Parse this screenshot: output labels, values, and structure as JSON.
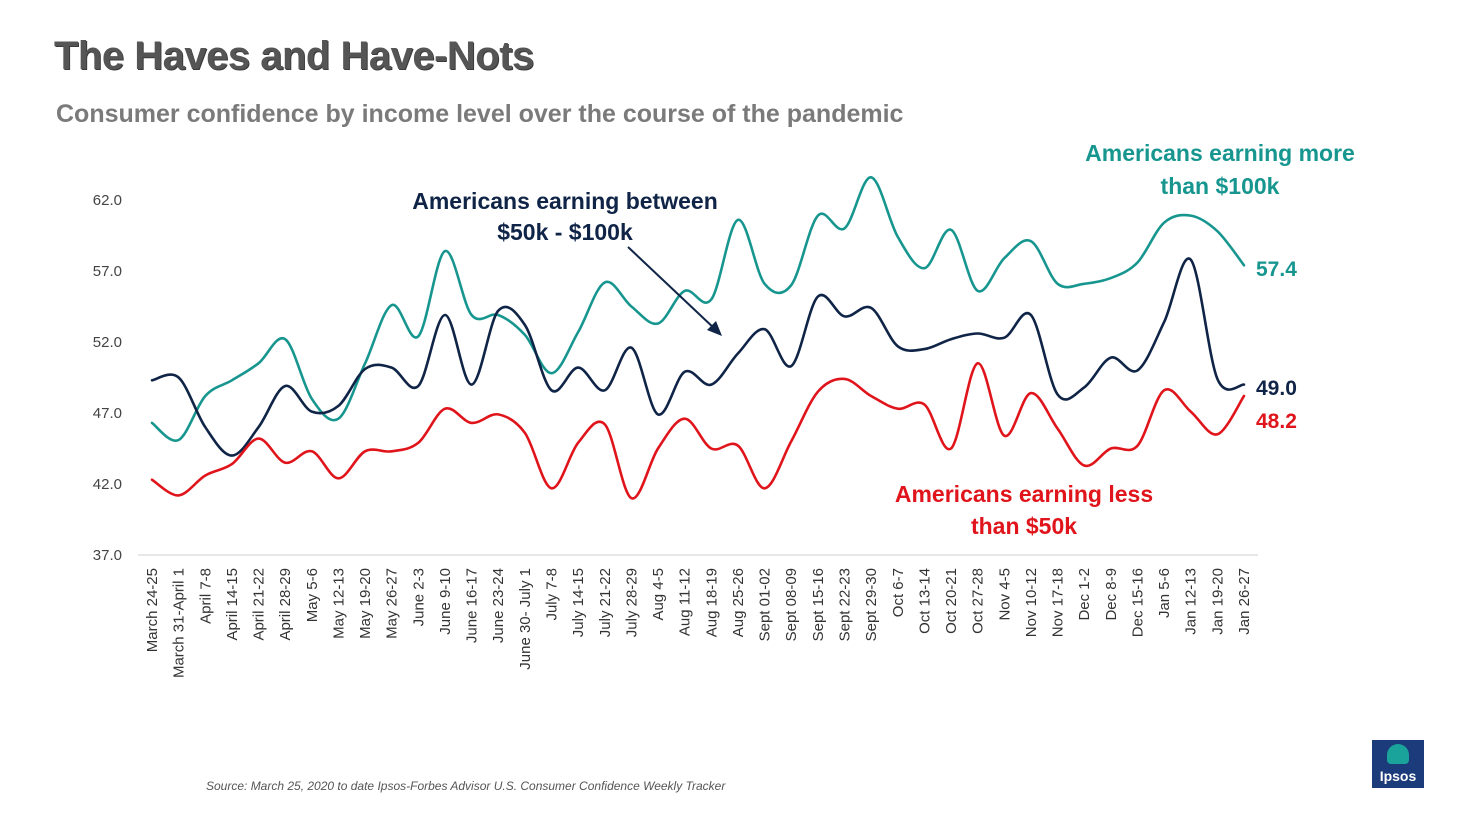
{
  "title": "The Haves and Have-Nots",
  "subtitle": "Consumer confidence by income level over the course of the pandemic",
  "source": "Source:    March 25, 2020 to date Ipsos-Forbes Advisor U.S. Consumer Confidence Weekly Tracker",
  "logo_text": "Ipsos",
  "chart_data": {
    "type": "line",
    "title": "The Haves and Have-Nots",
    "ylim": [
      37.0,
      62.0
    ],
    "yticks": [
      "62.0",
      "57.0",
      "52.0",
      "47.0",
      "42.0",
      "37.0"
    ],
    "categories": [
      "March 24-25",
      "March 31-April 1",
      "April 7-8",
      "April 14-15",
      "April 21-22",
      "April 28-29",
      "May 5-6",
      "May 12-13",
      "May 19-20",
      "May 26-27",
      "June 2-3",
      "June 9-10",
      "June 16-17",
      "June 23-24",
      "June 30- July 1",
      "July 7-8",
      "July 14-15",
      "July 21-22",
      "July 28-29",
      "Aug 4-5",
      "Aug 11-12",
      "Aug 18-19",
      "Aug 25-26",
      "Sept 01-02",
      "Sept 08-09",
      "Sept 15-16",
      "Sept 22-23",
      "Sept 29-30",
      "Oct 6-7",
      "Oct 13-14",
      "Oct 20-21",
      "Oct 27-28",
      "Nov 4-5",
      "Nov 10-12",
      "Nov 17-18",
      "Dec 1-2",
      "Dec 8-9",
      "Dec 15-16",
      "Jan 5-6",
      "Jan 12-13",
      "Jan 19-20",
      "Jan 26-27"
    ],
    "series": [
      {
        "name": "Americans earning more than $100k",
        "label": "Americans earning more than $100k",
        "label_lines": [
          "Americans earning more",
          "than $100k"
        ],
        "color": "#17968f",
        "end_label": "57.4",
        "values": [
          46.3,
          45.1,
          48.2,
          49.3,
          50.5,
          52.2,
          48.0,
          46.6,
          50.5,
          54.6,
          52.4,
          58.4,
          53.9,
          53.9,
          52.5,
          49.8,
          52.7,
          56.2,
          54.5,
          53.3,
          55.6,
          55.0,
          60.6,
          56.1,
          56.0,
          60.9,
          60.0,
          63.6,
          59.4,
          57.2,
          59.9,
          55.6,
          57.9,
          59.1,
          56.1,
          56.1,
          56.5,
          57.6,
          60.4,
          60.9,
          59.8,
          57.4
        ]
      },
      {
        "name": "Americans earning between $50k - $100k",
        "label": "Americans earning between $50k - $100k",
        "label_lines": [
          "Americans earning between",
          "$50k - $100k"
        ],
        "color": "#0f2446",
        "end_label": "49.0",
        "values": [
          49.3,
          49.5,
          46.0,
          44.0,
          46.0,
          48.9,
          47.1,
          47.5,
          50.1,
          50.2,
          48.9,
          53.9,
          49.0,
          54.2,
          53.2,
          48.6,
          50.2,
          48.6,
          51.6,
          46.9,
          49.9,
          49.0,
          51.2,
          52.9,
          50.3,
          55.2,
          53.8,
          54.4,
          51.7,
          51.5,
          52.2,
          52.6,
          52.3,
          53.9,
          48.3,
          48.8,
          50.9,
          50.0,
          53.4,
          57.8,
          49.4,
          49.0
        ]
      },
      {
        "name": "Americans earning less than $50k",
        "label": "Americans earning less than $50k",
        "label_lines": [
          "Americans earning less",
          "than $50k"
        ],
        "color": "#e0141b",
        "end_label": "48.2",
        "values": [
          42.3,
          41.2,
          42.6,
          43.4,
          45.2,
          43.5,
          44.3,
          42.4,
          44.3,
          44.3,
          44.9,
          47.3,
          46.3,
          46.9,
          45.6,
          41.7,
          44.9,
          46.2,
          41.0,
          44.5,
          46.6,
          44.5,
          44.7,
          41.7,
          45.0,
          48.5,
          49.4,
          48.2,
          47.3,
          47.6,
          44.5,
          50.5,
          45.4,
          48.4,
          45.9,
          43.3,
          44.5,
          44.7,
          48.6,
          47.1,
          45.5,
          48.2
        ]
      }
    ]
  }
}
